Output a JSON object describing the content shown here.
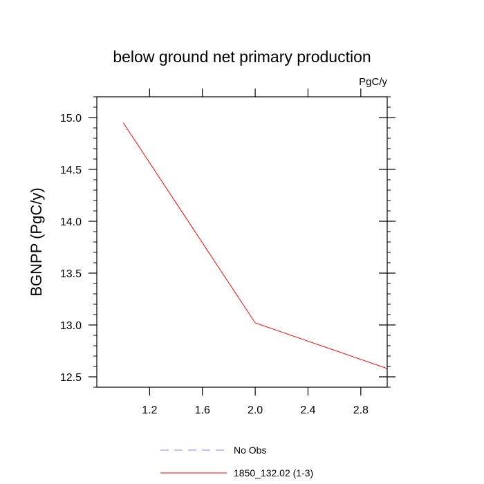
{
  "chart_data": {
    "type": "line",
    "title": "below ground net primary production",
    "units": "PgC/y",
    "xlabel": "",
    "ylabel": "BGNPP  (PgC/y)",
    "xlim": [
      0.8,
      3.0
    ],
    "ylim": [
      12.4,
      15.2
    ],
    "x_ticks": [
      1.2,
      1.6,
      2.0,
      2.4,
      2.8
    ],
    "x_tick_labels": [
      "1.2",
      "1.6",
      "2.0",
      "2.4",
      "2.8"
    ],
    "y_ticks": [
      12.5,
      13.0,
      13.5,
      14.0,
      14.5,
      15.0
    ],
    "y_tick_labels": [
      "12.5",
      "13.0",
      "13.5",
      "14.0",
      "14.5",
      "15.0"
    ],
    "grid": false,
    "legend_position": "bottom-center",
    "series": [
      {
        "name": "1850_132.02 (1-3)",
        "color": "#ff0000",
        "dash": "solid",
        "x": [
          1,
          2,
          3
        ],
        "y": [
          14.95,
          13.02,
          12.58
        ]
      }
    ],
    "legend": [
      {
        "label": "No Obs",
        "color": "#8080ff",
        "dash": "dashed"
      },
      {
        "label": "1850_132.02 (1-3)",
        "color": "#ff0000",
        "dash": "solid"
      }
    ]
  }
}
